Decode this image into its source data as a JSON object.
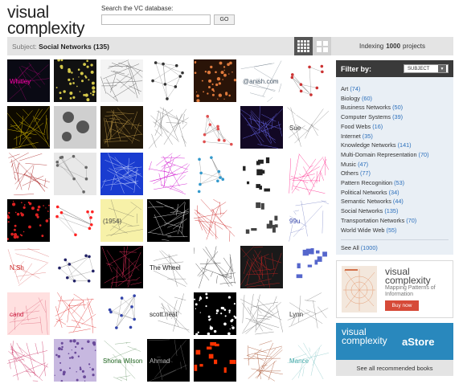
{
  "logo": {
    "line1": "visual",
    "line2": "complexity"
  },
  "search": {
    "label": "Search the VC database:",
    "value": "",
    "placeholder": "",
    "go_label": "GO"
  },
  "subject": {
    "prefix": "Subject:",
    "name": "Social Networks (135)"
  },
  "view_toggle": {
    "active": "small-grid"
  },
  "indexing": {
    "prefix": "Indexing",
    "count": "1000",
    "suffix": "projects"
  },
  "filter": {
    "title": "Filter by:",
    "select_value": "SUBJECT",
    "items": [
      {
        "label": "Art",
        "count": "(74)"
      },
      {
        "label": "Biology",
        "count": "(60)"
      },
      {
        "label": "Business Networks",
        "count": "(50)"
      },
      {
        "label": "Computer Systems",
        "count": "(39)"
      },
      {
        "label": "Food Webs",
        "count": "(16)"
      },
      {
        "label": "Internet",
        "count": "(35)"
      },
      {
        "label": "Knowledge Networks",
        "count": "(141)"
      },
      {
        "label": "Multi-Domain Representation",
        "count": "(70)"
      },
      {
        "label": "Music",
        "count": "(47)"
      },
      {
        "label": "Others",
        "count": "(77)"
      },
      {
        "label": "Pattern Recognition",
        "count": "(53)"
      },
      {
        "label": "Political Networks",
        "count": "(34)"
      },
      {
        "label": "Semantic Networks",
        "count": "(44)"
      },
      {
        "label": "Social Networks",
        "count": "(135)"
      },
      {
        "label": "Transportation Networks",
        "count": "(70)"
      },
      {
        "label": "World Wide Web",
        "count": "(55)"
      }
    ],
    "see_all": {
      "label": "See All",
      "count": "(1000)"
    }
  },
  "book_ad": {
    "title_line1": "visual",
    "title_line2": "complexity",
    "subtitle": "Mapping Patterns of Information",
    "buy_label": "Buy now"
  },
  "astore": {
    "title_line1": "visual",
    "title_line2": "complexity",
    "brand": "aStore",
    "link_label": "See all recommended books"
  },
  "thumbnails": [
    {
      "bg": "#0a0a14",
      "fg": "#ff00aa",
      "kind": "text",
      "text": "Whitley"
    },
    {
      "bg": "#111111",
      "fg": "#d4c84a",
      "kind": "dots"
    },
    {
      "bg": "#f4f4f4",
      "fg": "#555555",
      "kind": "lines"
    },
    {
      "bg": "#ffffff",
      "fg": "#333333",
      "kind": "nodes"
    },
    {
      "bg": "#2a1408",
      "fg": "#e07a3c",
      "kind": "dots"
    },
    {
      "bg": "#ffffff",
      "fg": "#445566",
      "kind": "text",
      "text": "@anish.com"
    },
    {
      "bg": "#ffffff",
      "fg": "#cc3333",
      "kind": "nodes"
    },
    {
      "bg": "#0e0a00",
      "fg": "#f0d000",
      "kind": "lines"
    },
    {
      "bg": "#cfcfcf",
      "fg": "#555555",
      "kind": "circles"
    },
    {
      "bg": "#201708",
      "fg": "#c9a24a",
      "kind": "lines"
    },
    {
      "bg": "#ffffff",
      "fg": "#777777",
      "kind": "lines"
    },
    {
      "bg": "#ffffff",
      "fg": "#e05050",
      "kind": "nodes"
    },
    {
      "bg": "#120824",
      "fg": "#7070ff",
      "kind": "lines"
    },
    {
      "bg": "#ffffff",
      "fg": "#333333",
      "kind": "text",
      "text": "Sue"
    },
    {
      "bg": "#ffffff",
      "fg": "#aa2222",
      "kind": "lines"
    },
    {
      "bg": "#e8e8e8",
      "fg": "#666666",
      "kind": "nodes"
    },
    {
      "bg": "#1a3cd0",
      "fg": "#d0dcff",
      "kind": "lines"
    },
    {
      "bg": "#ffffff",
      "fg": "#cc00cc",
      "kind": "lines"
    },
    {
      "bg": "#ffffff",
      "fg": "#3399cc",
      "kind": "nodes"
    },
    {
      "bg": "#ffffff",
      "fg": "#222222",
      "kind": "squares"
    },
    {
      "bg": "#ffffff",
      "fg": "#ff2288",
      "kind": "lines"
    },
    {
      "bg": "#000000",
      "fg": "#dd2222",
      "kind": "dots"
    },
    {
      "bg": "#ffffff",
      "fg": "#ff2222",
      "kind": "nodes"
    },
    {
      "bg": "#f7f1a8",
      "fg": "#444444",
      "kind": "text",
      "text": "(1954)"
    },
    {
      "bg": "#000000",
      "fg": "#ffffff",
      "kind": "lines"
    },
    {
      "bg": "#ffffff",
      "fg": "#cc2222",
      "kind": "lines"
    },
    {
      "bg": "#ffffff",
      "fg": "#444444",
      "kind": "squares"
    },
    {
      "bg": "#ffffff",
      "fg": "#3344aa",
      "kind": "text",
      "text": "99u"
    },
    {
      "bg": "#ffffff",
      "fg": "#cc2222",
      "kind": "text",
      "text": "N.Sh"
    },
    {
      "bg": "#ffffff",
      "fg": "#222266",
      "kind": "nodes"
    },
    {
      "bg": "#000000",
      "fg": "#ff3366",
      "kind": "lines"
    },
    {
      "bg": "#ffffff",
      "fg": "#222222",
      "kind": "text",
      "text": "The Wheel"
    },
    {
      "bg": "#ffffff",
      "fg": "#333333",
      "kind": "lines"
    },
    {
      "bg": "#1a1a1a",
      "fg": "#cc2222",
      "kind": "lines"
    },
    {
      "bg": "#ffffff",
      "fg": "#5566cc",
      "kind": "squares"
    },
    {
      "bg": "#ffe0e0",
      "fg": "#cc2244",
      "kind": "text",
      "text": "cand"
    },
    {
      "bg": "#ffffff",
      "fg": "#e03030",
      "kind": "lines"
    },
    {
      "bg": "#ffffff",
      "fg": "#3344aa",
      "kind": "nodes"
    },
    {
      "bg": "#ffffff",
      "fg": "#222222",
      "kind": "text",
      "text": "scott.neal"
    },
    {
      "bg": "#000000",
      "fg": "#ffffff",
      "kind": "dots"
    },
    {
      "bg": "#ffffff",
      "fg": "#777777",
      "kind": "lines"
    },
    {
      "bg": "#ffffff",
      "fg": "#333333",
      "kind": "text",
      "text": "Lynn"
    },
    {
      "bg": "#ffffff",
      "fg": "#cc3366",
      "kind": "lines"
    },
    {
      "bg": "#c7b8e0",
      "fg": "#6a4a9a",
      "kind": "dots"
    },
    {
      "bg": "#ffffff",
      "fg": "#226622",
      "kind": "text",
      "text": "Shona Wilson"
    },
    {
      "bg": "#000000",
      "fg": "#bbbbbb",
      "kind": "text",
      "text": "Ahmad"
    },
    {
      "bg": "#000000",
      "fg": "#ff3300",
      "kind": "squares"
    },
    {
      "bg": "#ffffff",
      "fg": "#aa5533",
      "kind": "lines"
    },
    {
      "bg": "#ffffff",
      "fg": "#44aaaa",
      "kind": "text",
      "text": "Mance"
    }
  ]
}
